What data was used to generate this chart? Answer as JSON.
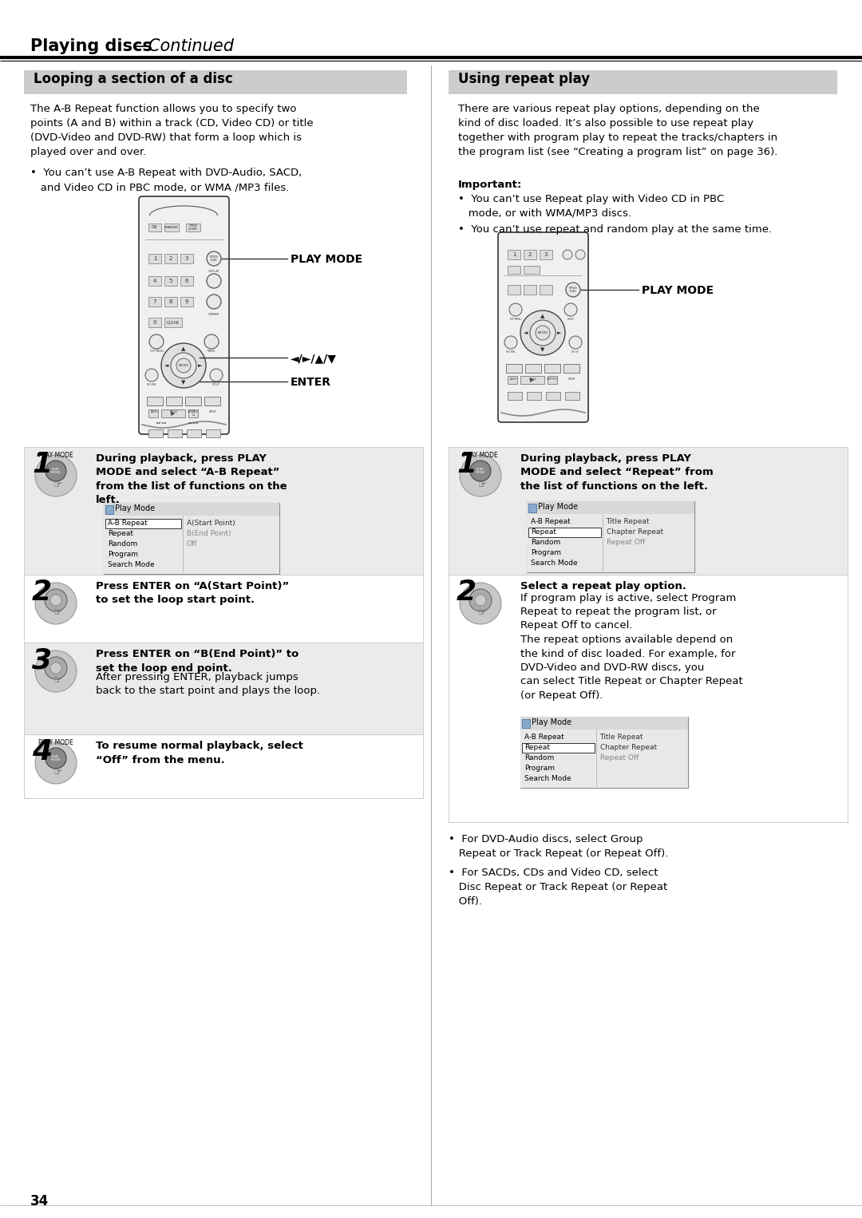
{
  "page_bg": "#ffffff",
  "page_number": "34",
  "header_bold": "Playing discs",
  "header_italic": "—Continued",
  "left_section_title": "Looping a section of a disc",
  "right_section_title": "Using repeat play",
  "section_bg": "#cccccc",
  "left_body": "The A-B Repeat function allows you to specify two\npoints (A and B) within a track (CD, Video CD) or title\n(DVD-Video and DVD-RW) that form a loop which is\nplayed over and over.",
  "left_bullet": "•  You can’t use A-B Repeat with DVD-Audio, SACD,\n   and Video CD in PBC mode, or WMA /MP3 files.",
  "right_body": "There are various repeat play options, depending on the\nkind of disc loaded. It’s also possible to use repeat play\ntogether with program play to repeat the tracks/chapters in\nthe program list (see “Creating a program list” on page 36).",
  "right_important": "Important:",
  "right_bullet1": "•  You can’t use Repeat play with Video CD in PBC\n   mode, or with WMA/MP3 discs.",
  "right_bullet2": "•  You can’t use repeat and random play at the same time.",
  "label_play_mode": "PLAY MODE",
  "label_arrow": "◄/►/▲/▼",
  "label_enter": "ENTER",
  "step1L_num": "1",
  "step1L_text": "During playback, press PLAY\nMODE and select “A-B Repeat”\nfrom the list of functions on the\nleft.",
  "step2L_num": "2",
  "step2L_text": "Press ENTER on “A(Start Point)”\nto set the loop start point.",
  "step3L_num": "3",
  "step3L_bold": "Press ENTER on “B(End Point)” to\nset the loop end point.",
  "step3L_normal": "After pressing ENTER, playback jumps\nback to the start point and plays the loop.",
  "step4L_num": "4",
  "step4L_text": "To resume normal playback, select\n“Off” from the menu.",
  "step1R_num": "1",
  "step1R_text": "During playback, press PLAY\nMODE and select “Repeat” from\nthe list of functions on the left.",
  "step2R_num": "2",
  "step2R_bold": "Select a repeat play option.",
  "step2R_text": "If program play is active, select Program\nRepeat to repeat the program list, or\nRepeat Off to cancel.\nThe repeat options available depend on\nthe kind of disc loaded. For example, for\nDVD-Video and DVD-RW discs, you\ncan select Title Repeat or Chapter Repeat\n(or Repeat Off).",
  "screen1_title": "Play Mode",
  "screen1_rows": [
    [
      "A-B Repeat",
      "A(Start Point)"
    ],
    [
      "Repeat",
      "B(End Point)"
    ],
    [
      "Random",
      "Off"
    ],
    [
      "Program",
      ""
    ],
    [
      "Search Mode",
      ""
    ]
  ],
  "screen1_hl": 0,
  "screen2_title": "Play Mode",
  "screen2_rows": [
    [
      "A-B Repeat",
      "Title Repeat"
    ],
    [
      "Repeat",
      "Chapter Repeat"
    ],
    [
      "Random",
      "Repeat Off"
    ],
    [
      "Program",
      ""
    ],
    [
      "Search Mode",
      ""
    ]
  ],
  "screen2_hl": 1,
  "screen3_title": "Play Mode",
  "screen3_rows": [
    [
      "A-B Repeat",
      "Title Repeat"
    ],
    [
      "Repeat",
      "Chapter Repeat"
    ],
    [
      "Random",
      "Repeat Off"
    ],
    [
      "Program",
      ""
    ],
    [
      "Search Mode",
      ""
    ]
  ],
  "screen3_hl": 1,
  "bottom_bullet1": "•  For DVD-Audio discs, select Group\n   Repeat or Track Repeat (or Repeat Off).",
  "bottom_bullet2": "•  For SACDs, CDs and Video CD, select\n   Disc Repeat or Track Repeat (or Repeat\n   Off)."
}
